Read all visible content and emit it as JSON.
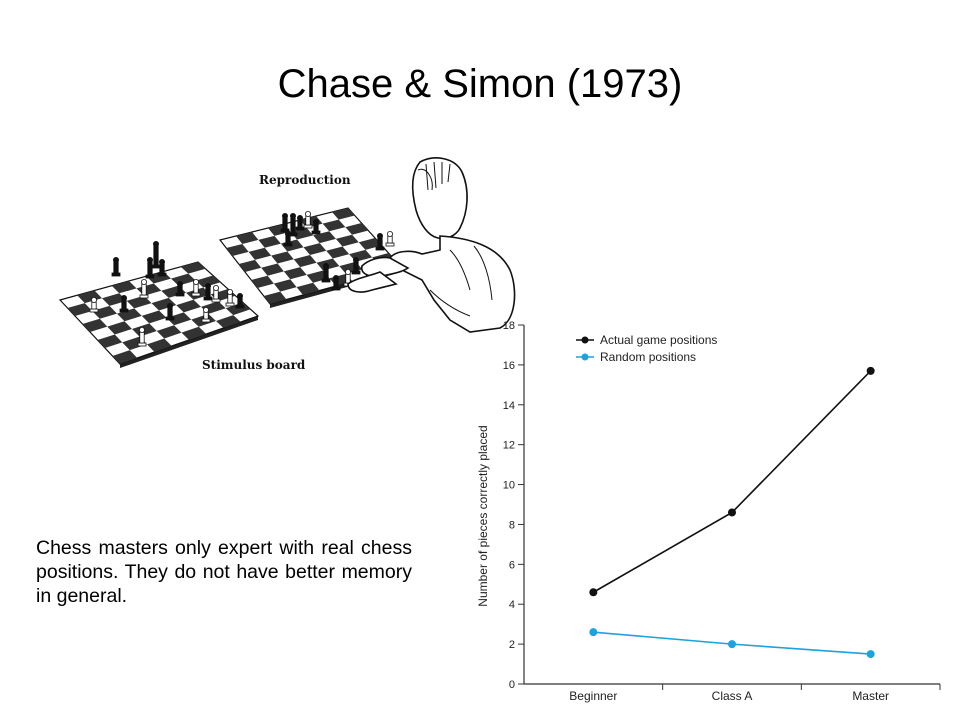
{
  "slide": {
    "title": "Chase & Simon (1973)",
    "caption": "Chess masters only expert with real chess positions. They do not have better memory in general."
  },
  "illustration": {
    "reproduction_label": "Reproduction",
    "stimulus_label": "Stimulus board"
  },
  "chart_data": {
    "type": "line",
    "categories": [
      "Beginner",
      "Class A",
      "Master"
    ],
    "series": [
      {
        "name": "Actual game positions",
        "values": [
          4.6,
          8.6,
          15.7
        ],
        "color": "#111111"
      },
      {
        "name": "Random positions",
        "values": [
          2.6,
          2.0,
          1.5
        ],
        "color": "#1aa3df"
      }
    ],
    "ylabel": "Number of pieces correctly placed",
    "xlabel": "",
    "ylim": [
      0,
      18
    ],
    "yticks": [
      0,
      2,
      4,
      6,
      8,
      10,
      12,
      14,
      16,
      18
    ],
    "grid": false,
    "legend_position": "top-left"
  }
}
